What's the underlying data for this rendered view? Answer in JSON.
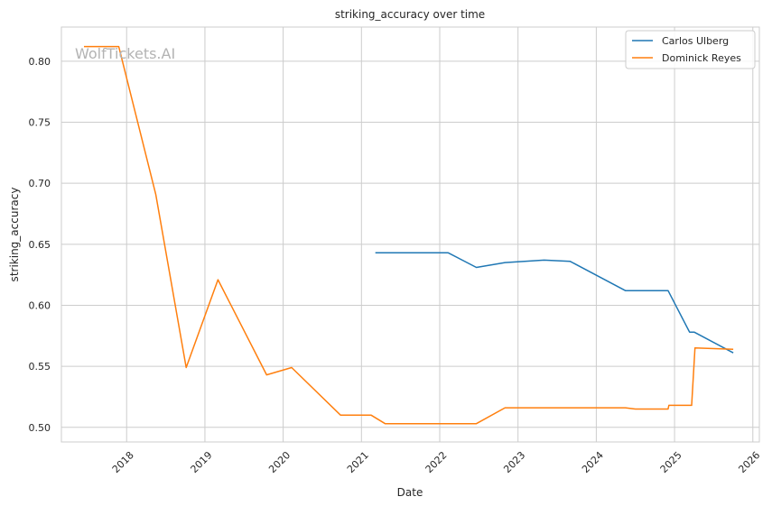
{
  "chart_data": {
    "type": "line",
    "title": "striking_accuracy over time",
    "xlabel": "Date",
    "ylabel": "striking_accuracy",
    "watermark": "WolfTickets.AI",
    "x_is_date": true,
    "xlim": [
      "2017-03-01",
      "2026-02-01"
    ],
    "ylim": [
      0.488,
      0.828
    ],
    "x_ticks": [
      "2018",
      "2019",
      "2020",
      "2021",
      "2022",
      "2023",
      "2024",
      "2025",
      "2026"
    ],
    "y_ticks": [
      "0.50",
      "0.55",
      "0.60",
      "0.65",
      "0.70",
      "0.75",
      "0.80"
    ],
    "grid": true,
    "legend": "top-right",
    "series": [
      {
        "name": "Carlos Ulberg",
        "color": "#1f77b4",
        "points": [
          [
            "2021-03-05",
            0.643
          ],
          [
            "2022-02-10",
            0.643
          ],
          [
            "2022-06-20",
            0.631
          ],
          [
            "2022-11-01",
            0.635
          ],
          [
            "2023-05-01",
            0.637
          ],
          [
            "2023-09-01",
            0.636
          ],
          [
            "2024-05-15",
            0.612
          ],
          [
            "2024-12-01",
            0.612
          ],
          [
            "2025-03-10",
            0.578
          ],
          [
            "2025-04-01",
            0.578
          ],
          [
            "2025-10-01",
            0.561
          ]
        ]
      },
      {
        "name": "Dominick Reyes",
        "color": "#ff7f0e",
        "points": [
          [
            "2017-06-15",
            0.812
          ],
          [
            "2017-11-25",
            0.812
          ],
          [
            "2018-05-15",
            0.691
          ],
          [
            "2018-10-05",
            0.549
          ],
          [
            "2019-03-01",
            0.621
          ],
          [
            "2019-10-15",
            0.543
          ],
          [
            "2020-02-10",
            0.549
          ],
          [
            "2020-09-25",
            0.51
          ],
          [
            "2021-02-15",
            0.51
          ],
          [
            "2021-04-20",
            0.503
          ],
          [
            "2022-06-20",
            0.503
          ],
          [
            "2022-11-01",
            0.516
          ],
          [
            "2024-05-15",
            0.516
          ],
          [
            "2024-07-01",
            0.515
          ],
          [
            "2024-12-01",
            0.515
          ],
          [
            "2024-12-05",
            0.518
          ],
          [
            "2025-03-20",
            0.518
          ],
          [
            "2025-04-05",
            0.565
          ],
          [
            "2025-10-01",
            0.564
          ]
        ]
      }
    ]
  }
}
